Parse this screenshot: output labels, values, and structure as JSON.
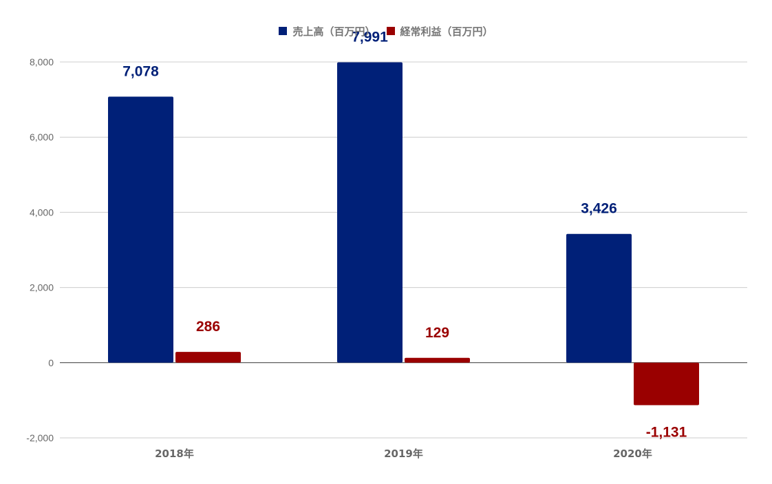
{
  "chart_data": {
    "type": "bar",
    "categories": [
      "2018年",
      "2019年",
      "2020年"
    ],
    "series": [
      {
        "name": "売上高（百万円）",
        "values": [
          7078,
          7991,
          3426
        ],
        "labels": [
          "7,078",
          "7,991",
          "3,426"
        ],
        "color": "#002078"
      },
      {
        "name": "経常利益（百万円）",
        "values": [
          286,
          129,
          -1131
        ],
        "labels": [
          "286",
          "129",
          "-1,131"
        ],
        "color": "#9a0000"
      }
    ],
    "ylim": [
      -2000,
      8000
    ],
    "yticks": [
      -2000,
      0,
      2000,
      4000,
      6000,
      8000
    ],
    "ytick_labels": [
      "-2,000",
      "0",
      "2,000",
      "4,000",
      "6,000",
      "8,000"
    ],
    "grid": true,
    "legend_position": "top"
  }
}
